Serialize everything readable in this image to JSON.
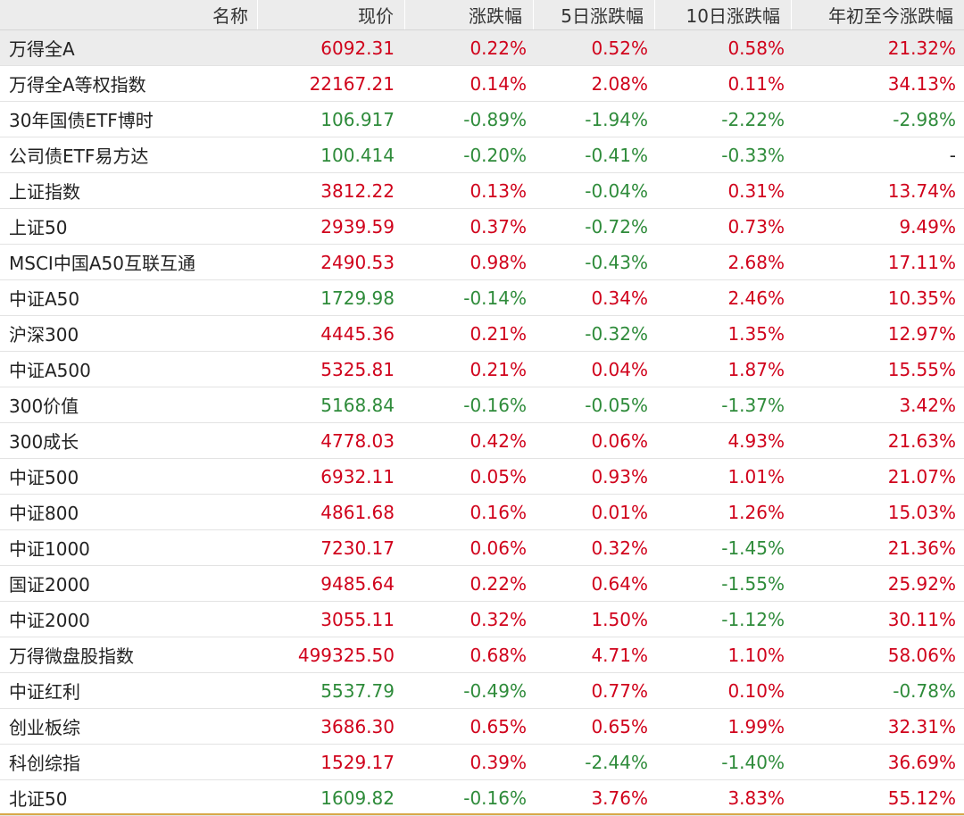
{
  "colors": {
    "up": "#d0021b",
    "down": "#2e8b3a",
    "header_bg": "#ececec",
    "accent_line": "#d8a94a"
  },
  "columns": [
    "名称",
    "现价",
    "涨跌幅",
    "5日涨跌幅",
    "10日涨跌幅",
    "年初至今涨跌幅"
  ],
  "rows": [
    {
      "name": "万得全A",
      "price": "6092.31",
      "chg": "0.22%",
      "d5": "0.52%",
      "d10": "0.58%",
      "ytd": "21.32%",
      "highlight": true
    },
    {
      "name": "万得全A等权指数",
      "price": "22167.21",
      "chg": "0.14%",
      "d5": "2.08%",
      "d10": "0.11%",
      "ytd": "34.13%"
    },
    {
      "name": "30年国债ETF博时",
      "price": "106.917",
      "chg": "-0.89%",
      "d5": "-1.94%",
      "d10": "-2.22%",
      "ytd": "-2.98%"
    },
    {
      "name": "公司债ETF易方达",
      "price": "100.414",
      "chg": "-0.20%",
      "d5": "-0.41%",
      "d10": "-0.33%",
      "ytd": "-"
    },
    {
      "name": "上证指数",
      "price": "3812.22",
      "chg": "0.13%",
      "d5": "-0.04%",
      "d10": "0.31%",
      "ytd": "13.74%"
    },
    {
      "name": "上证50",
      "price": "2939.59",
      "chg": "0.37%",
      "d5": "-0.72%",
      "d10": "0.73%",
      "ytd": "9.49%"
    },
    {
      "name": "MSCI中国A50互联互通",
      "price": "2490.53",
      "chg": "0.98%",
      "d5": "-0.43%",
      "d10": "2.68%",
      "ytd": "17.11%"
    },
    {
      "name": "中证A50",
      "price": "1729.98",
      "chg": "-0.14%",
      "d5": "0.34%",
      "d10": "2.46%",
      "ytd": "10.35%"
    },
    {
      "name": "沪深300",
      "price": "4445.36",
      "chg": "0.21%",
      "d5": "-0.32%",
      "d10": "1.35%",
      "ytd": "12.97%"
    },
    {
      "name": "中证A500",
      "price": "5325.81",
      "chg": "0.21%",
      "d5": "0.04%",
      "d10": "1.87%",
      "ytd": "15.55%"
    },
    {
      "name": "300价值",
      "price": "5168.84",
      "chg": "-0.16%",
      "d5": "-0.05%",
      "d10": "-1.37%",
      "ytd": "3.42%"
    },
    {
      "name": "300成长",
      "price": "4778.03",
      "chg": "0.42%",
      "d5": "0.06%",
      "d10": "4.93%",
      "ytd": "21.63%"
    },
    {
      "name": "中证500",
      "price": "6932.11",
      "chg": "0.05%",
      "d5": "0.93%",
      "d10": "1.01%",
      "ytd": "21.07%"
    },
    {
      "name": "中证800",
      "price": "4861.68",
      "chg": "0.16%",
      "d5": "0.01%",
      "d10": "1.26%",
      "ytd": "15.03%"
    },
    {
      "name": "中证1000",
      "price": "7230.17",
      "chg": "0.06%",
      "d5": "0.32%",
      "d10": "-1.45%",
      "ytd": "21.36%"
    },
    {
      "name": "国证2000",
      "price": "9485.64",
      "chg": "0.22%",
      "d5": "0.64%",
      "d10": "-1.55%",
      "ytd": "25.92%"
    },
    {
      "name": "中证2000",
      "price": "3055.11",
      "chg": "0.32%",
      "d5": "1.50%",
      "d10": "-1.12%",
      "ytd": "30.11%"
    },
    {
      "name": "万得微盘股指数",
      "price": "499325.50",
      "chg": "0.68%",
      "d5": "4.71%",
      "d10": "1.10%",
      "ytd": "58.06%"
    },
    {
      "name": "中证红利",
      "price": "5537.79",
      "chg": "-0.49%",
      "d5": "0.77%",
      "d10": "0.10%",
      "ytd": "-0.78%"
    },
    {
      "name": "创业板综",
      "price": "3686.30",
      "chg": "0.65%",
      "d5": "0.65%",
      "d10": "1.99%",
      "ytd": "32.31%"
    },
    {
      "name": "科创综指",
      "price": "1529.17",
      "chg": "0.39%",
      "d5": "-2.44%",
      "d10": "-1.40%",
      "ytd": "36.69%"
    },
    {
      "name": "北证50",
      "price": "1609.82",
      "chg": "-0.16%",
      "d5": "3.76%",
      "d10": "3.83%",
      "ytd": "55.12%"
    }
  ]
}
